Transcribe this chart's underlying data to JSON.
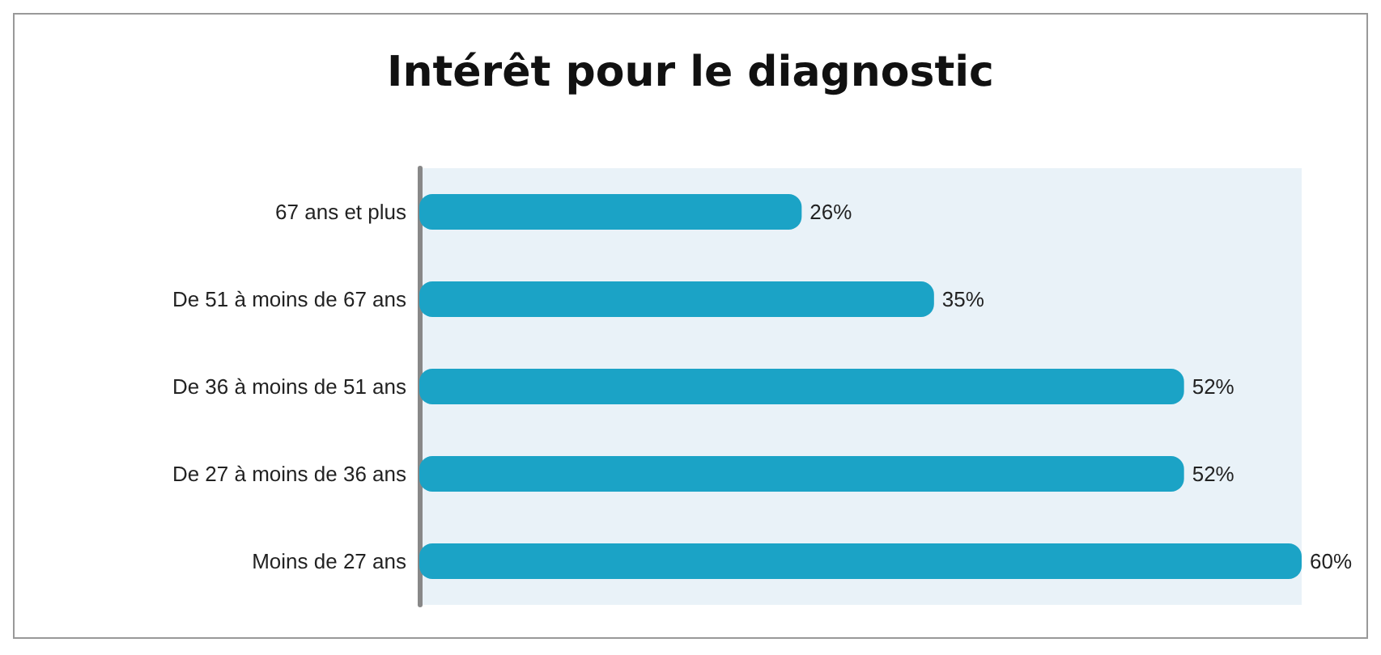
{
  "chart_data": {
    "type": "bar",
    "orientation": "horizontal",
    "title": "Intérêt pour le diagnostic",
    "categories": [
      "67 ans et plus",
      "De 51 à moins de 67 ans",
      "De 36 à moins de 51 ans",
      "De 27 à moins de 36 ans",
      "Moins de 27 ans"
    ],
    "values": [
      26,
      35,
      52,
      52,
      60
    ],
    "value_labels": [
      "26%",
      "35%",
      "52%",
      "52%",
      "60%"
    ],
    "color": "#1ba3c6"
  }
}
